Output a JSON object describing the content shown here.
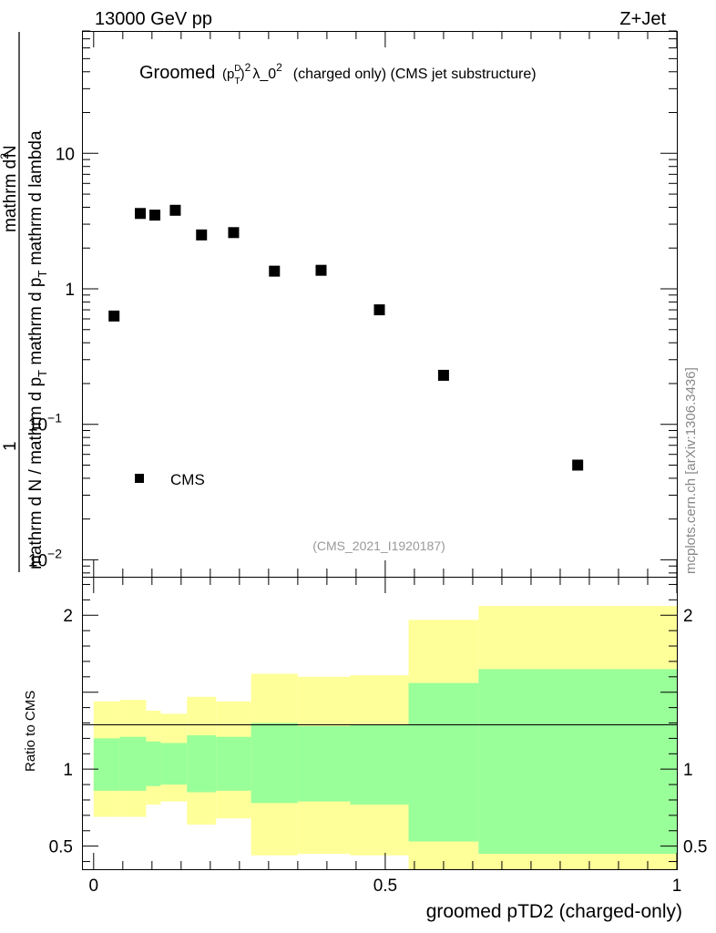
{
  "header": {
    "energy_label": "13000 GeV pp",
    "process_label": "Z+Jet",
    "side_label": "mcplots.cern.ch [arXiv:1306.3436]",
    "analysis_id": "(CMS_2021_I1920187)"
  },
  "chart_data": [
    {
      "type": "scatter",
      "title": "Groomed (p_T^D)^2 λ_0^2  (charged only) (CMS jet substructure)",
      "title_parts": {
        "word": "Groomed",
        "p": "p",
        "sup_d": "D",
        "sub_t": "T",
        "sup_2": "2",
        "lambda": "λ_0",
        "sup_2b": "2",
        "rest": "(charged only) (CMS jet substructure)"
      },
      "ylabel_parts": {
        "one": "1",
        "den": "mathrm d N / mathrm d p",
        "den_sub": "T",
        "den_end": " mathrm d p",
        "den_sub2": "T",
        "den_tail": " mathrm d lambda",
        "num": "mathrm d",
        "num_sup": "2",
        "num_end": "N"
      },
      "yscale": "log",
      "ylim": [
        0.0075,
        80
      ],
      "xlim": [
        -0.02,
        1.0
      ],
      "y_ticks": [
        {
          "value": 10,
          "mantissa": "10",
          "exp": ""
        },
        {
          "value": 1,
          "mantissa": "1",
          "exp": ""
        },
        {
          "value": 0.1,
          "mantissa": "10",
          "exp": "−1"
        },
        {
          "value": 0.01,
          "mantissa": "10",
          "exp": "−2"
        }
      ],
      "legend": {
        "entries": [
          "CMS"
        ],
        "position": "bottom-left"
      },
      "series": [
        {
          "name": "CMS",
          "x": [
            0.035,
            0.08,
            0.105,
            0.14,
            0.185,
            0.24,
            0.31,
            0.39,
            0.49,
            0.6,
            0.83
          ],
          "y": [
            0.63,
            3.6,
            3.5,
            3.8,
            2.5,
            2.6,
            1.35,
            1.37,
            0.7,
            0.23,
            0.05
          ]
        }
      ]
    },
    {
      "type": "area",
      "ylabel": "Ratio to CMS",
      "xlabel": "groomed pTD2 (charged-only)",
      "xlim": [
        -0.02,
        1.0
      ],
      "ylim": [
        0.35,
        2.25
      ],
      "x_ticks": [
        {
          "value": 0,
          "label": "0"
        },
        {
          "value": 0.5,
          "label": "0.5"
        },
        {
          "value": 1,
          "label": "1"
        }
      ],
      "y_ticks": [
        {
          "value": 2,
          "label": "2"
        },
        {
          "value": 1,
          "label": "1"
        },
        {
          "value": 0.5,
          "label": "0.5"
        }
      ],
      "reference_line": 1,
      "bin_edges": [
        0.0,
        0.045,
        0.09,
        0.115,
        0.16,
        0.21,
        0.27,
        0.35,
        0.44,
        0.54,
        0.66,
        1.0
      ],
      "bands": [
        {
          "role": "total uncertainty",
          "color": "#ffff99",
          "lower": [
            0.69,
            0.69,
            0.77,
            0.79,
            0.64,
            0.68,
            0.44,
            0.45,
            0.44,
            0.32,
            0.32
          ],
          "upper": [
            1.44,
            1.45,
            1.38,
            1.36,
            1.47,
            1.44,
            1.62,
            1.6,
            1.61,
            1.97,
            2.06
          ]
        },
        {
          "role": "statistical uncertainty",
          "color": "#99ff99",
          "lower": [
            0.86,
            0.86,
            0.89,
            0.9,
            0.85,
            0.86,
            0.78,
            0.79,
            0.77,
            0.53,
            0.45
          ],
          "upper": [
            1.2,
            1.21,
            1.18,
            1.17,
            1.22,
            1.21,
            1.3,
            1.28,
            1.29,
            1.56,
            1.65
          ]
        }
      ]
    }
  ]
}
